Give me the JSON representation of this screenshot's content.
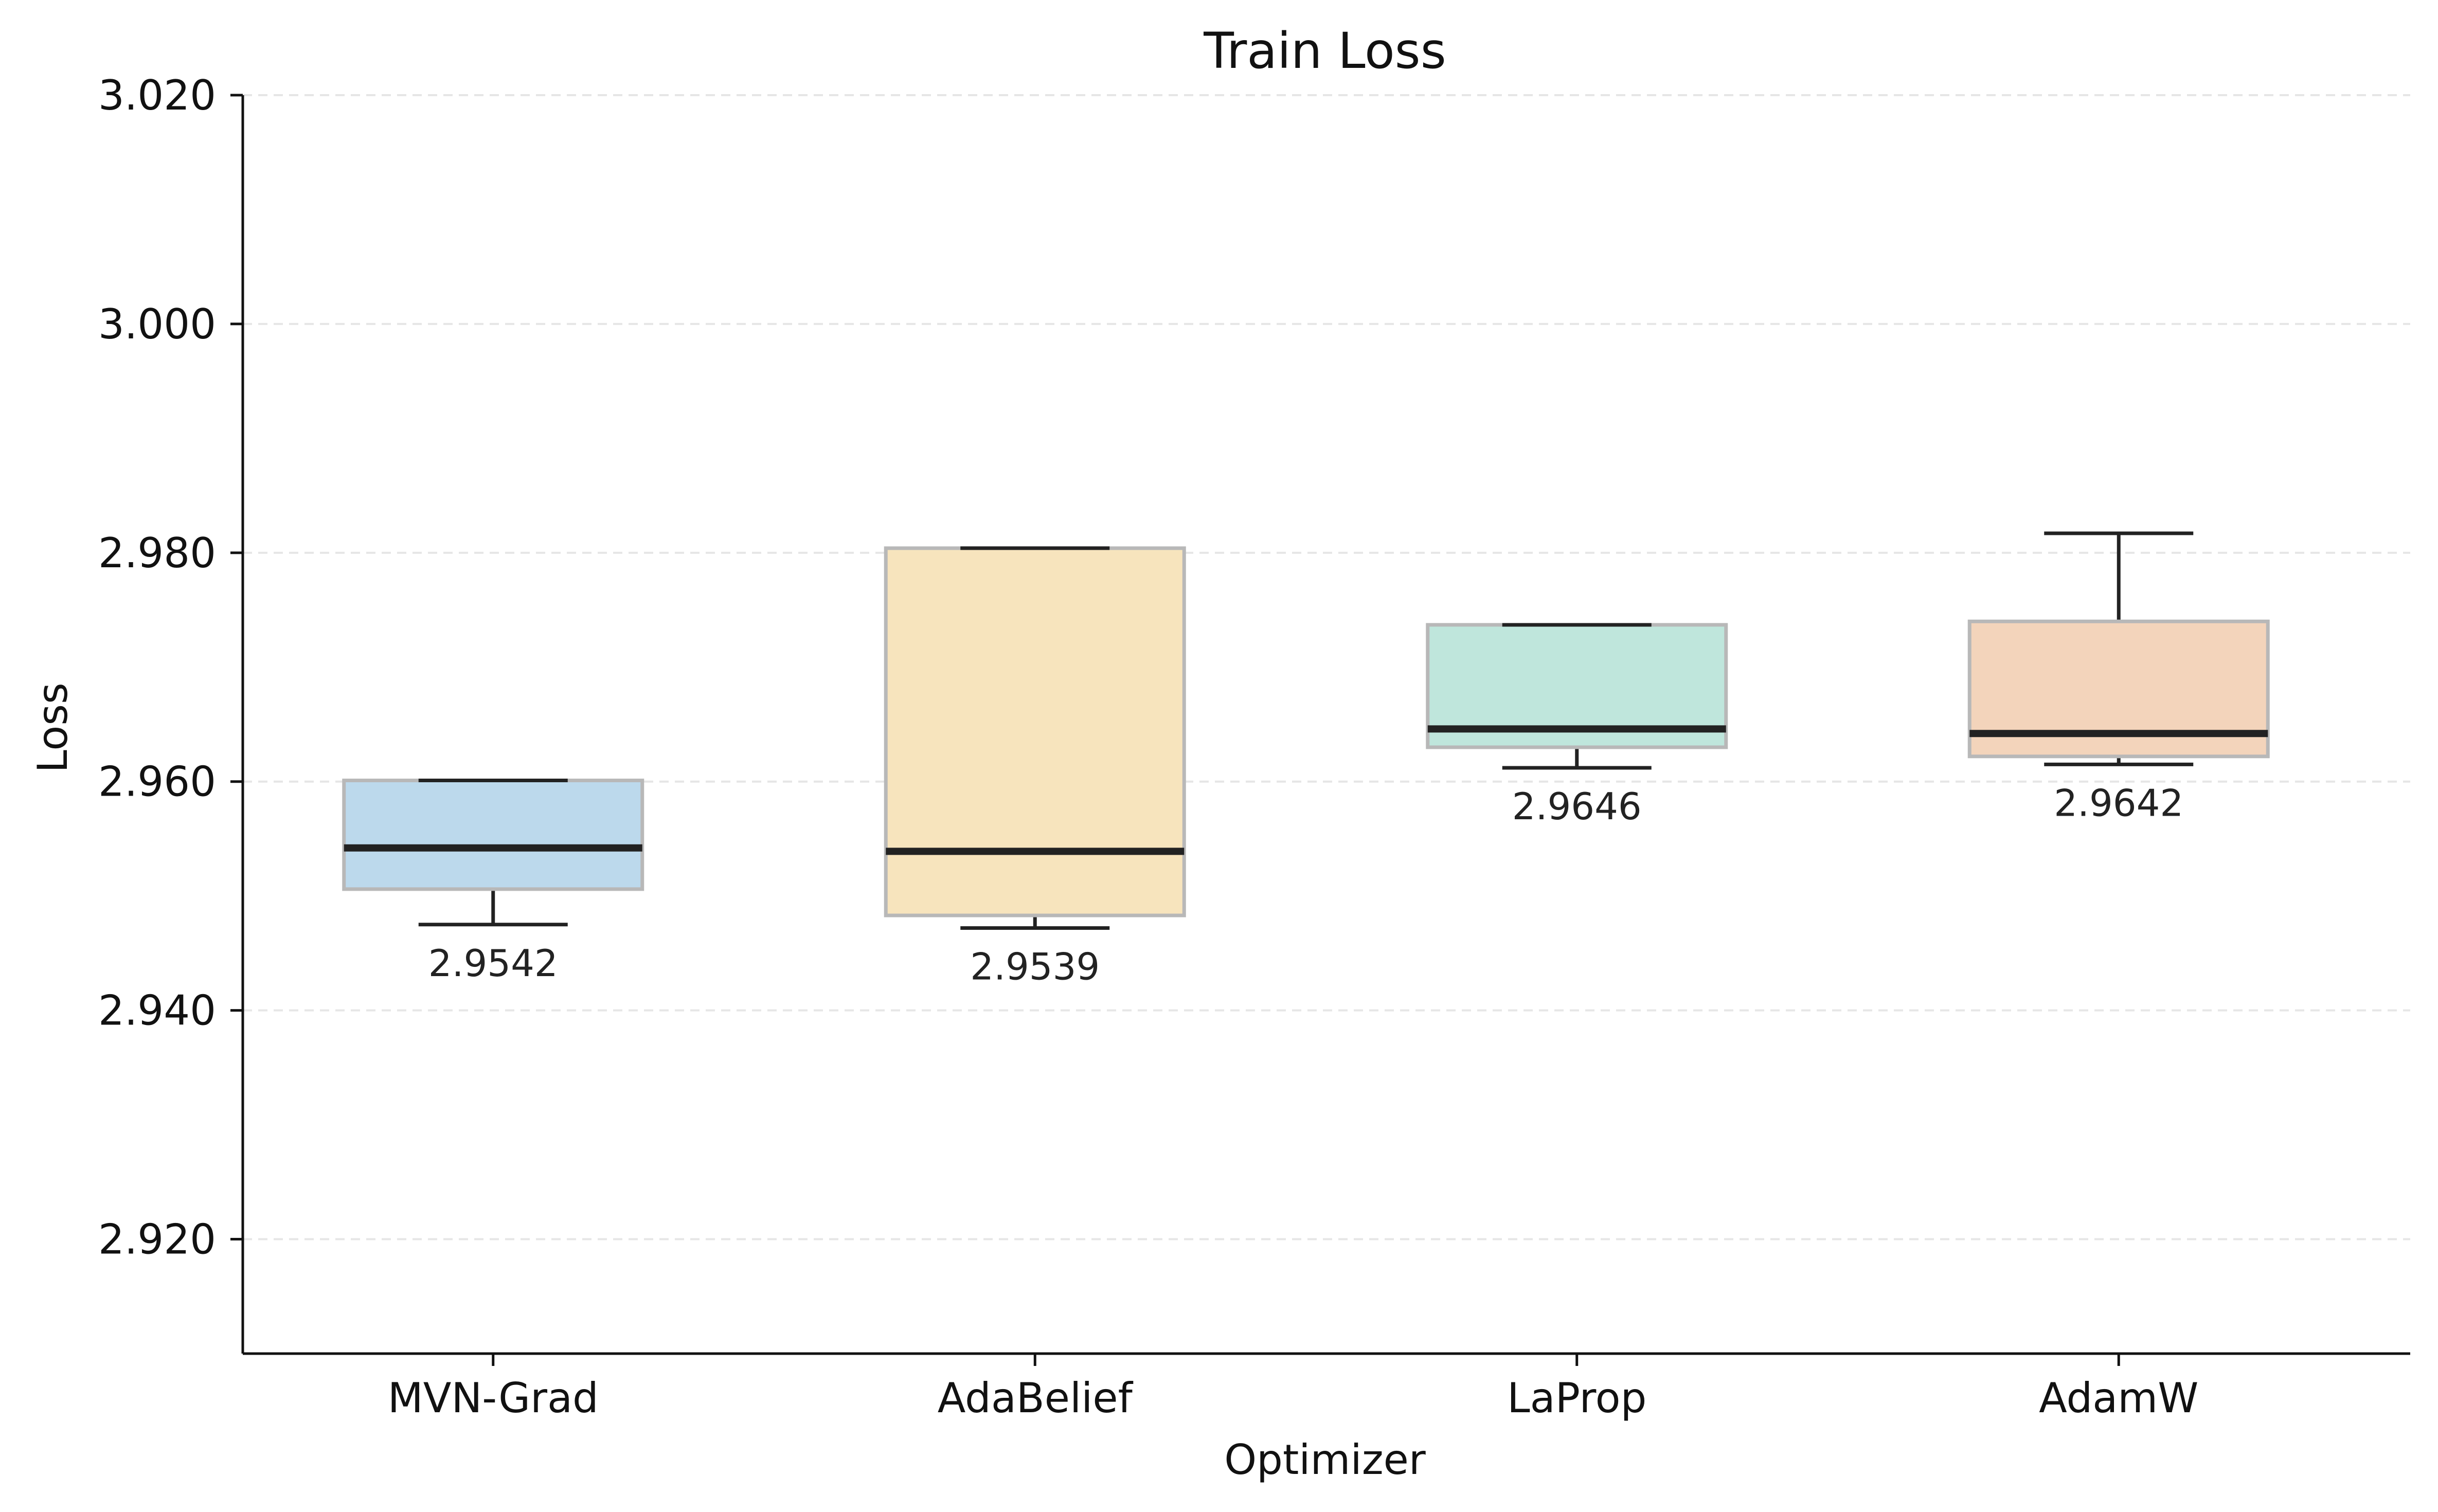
{
  "chart_data": {
    "type": "box",
    "title": "Train Loss",
    "xlabel": "Optimizer",
    "ylabel": "Loss",
    "ylim": [
      2.91,
      3.02
    ],
    "yticks": [
      2.92,
      2.94,
      2.96,
      2.98,
      3.0,
      3.02
    ],
    "ytick_labels": [
      "2.920",
      "2.940",
      "2.960",
      "2.980",
      "3.000",
      "3.020"
    ],
    "grid": "y dashed",
    "categories": [
      "MVN-Grad",
      "AdaBelief",
      "LaProp",
      "AdamW"
    ],
    "boxes": [
      {
        "name": "MVN-Grad",
        "whisker_low": 2.9475,
        "q1": 2.9506,
        "median": 2.9542,
        "q3": 2.9601,
        "whisker_high": 2.9601,
        "median_label": "2.9542",
        "color": "#bcd9ec"
      },
      {
        "name": "AdaBelief",
        "whisker_low": 2.9472,
        "q1": 2.9483,
        "median": 2.9539,
        "q3": 2.9804,
        "whisker_high": 2.9804,
        "median_label": "2.9539",
        "color": "#f7e4bd"
      },
      {
        "name": "LaProp",
        "whisker_low": 2.9612,
        "q1": 2.963,
        "median": 2.9646,
        "q3": 2.9737,
        "whisker_high": 2.9737,
        "median_label": "2.9646",
        "color": "#bfe6dc"
      },
      {
        "name": "AdamW",
        "whisker_low": 2.9615,
        "q1": 2.9622,
        "median": 2.9642,
        "q3": 2.974,
        "whisker_high": 2.9817,
        "median_label": "2.9642",
        "color": "#f3d4bb"
      }
    ]
  }
}
